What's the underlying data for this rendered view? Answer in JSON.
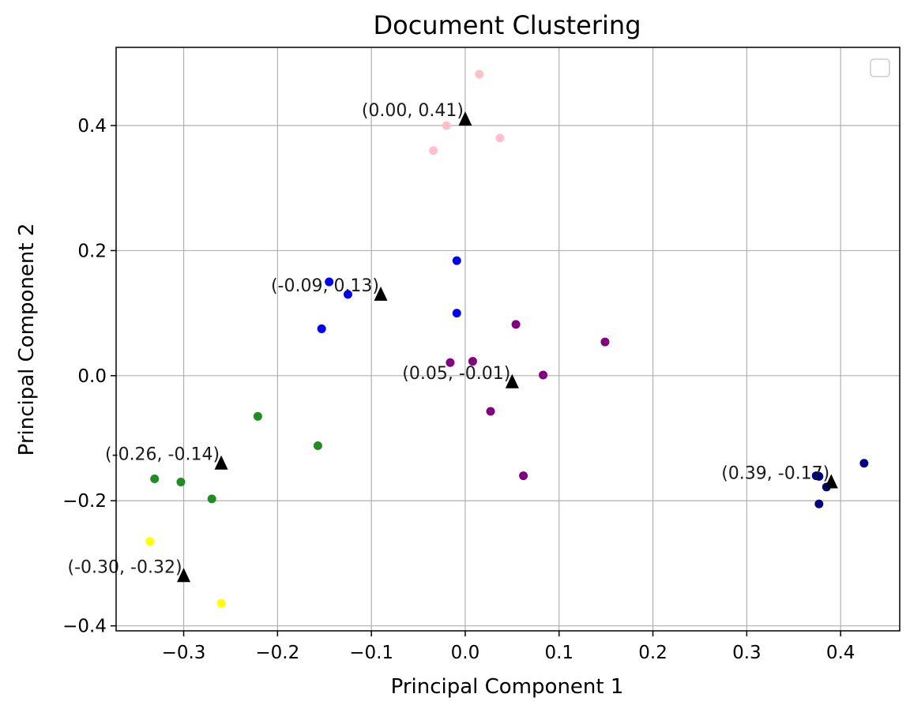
{
  "chart_data": {
    "type": "scatter",
    "title": "Document Clustering",
    "xlabel": "Principal Component 1",
    "ylabel": "Principal Component 2",
    "xlim": [
      -0.372,
      0.463
    ],
    "ylim": [
      -0.408,
      0.525
    ],
    "xticks": [
      -0.3,
      -0.2,
      -0.1,
      0.0,
      0.1,
      0.2,
      0.3,
      0.4
    ],
    "xtick_labels": [
      "−0.3",
      "−0.2",
      "−0.1",
      "0.0",
      "0.1",
      "0.2",
      "0.3",
      "0.4"
    ],
    "yticks": [
      -0.4,
      -0.2,
      0.0,
      0.2,
      0.4
    ],
    "ytick_labels": [
      "−0.4",
      "−0.2",
      "0.0",
      "0.2",
      "0.4"
    ],
    "grid": true,
    "legend": {
      "placement": "top-right",
      "entries": []
    },
    "series": [
      {
        "color": "#ffc0cb",
        "points": [
          [
            0.015,
            0.482
          ],
          [
            -0.02,
            0.4
          ],
          [
            0.037,
            0.38
          ],
          [
            -0.034,
            0.36
          ]
        ]
      },
      {
        "color": "#0000ff",
        "points": [
          [
            -0.009,
            0.184
          ],
          [
            -0.145,
            0.15
          ],
          [
            -0.125,
            0.13
          ],
          [
            -0.009,
            0.1
          ],
          [
            -0.153,
            0.075
          ]
        ]
      },
      {
        "color": "#800080",
        "points": [
          [
            0.054,
            0.082
          ],
          [
            0.149,
            0.054
          ],
          [
            -0.016,
            0.021
          ],
          [
            0.008,
            0.023
          ],
          [
            0.083,
            0.001
          ],
          [
            0.027,
            -0.057
          ],
          [
            0.062,
            -0.16
          ]
        ]
      },
      {
        "color": "#228b22",
        "points": [
          [
            -0.221,
            -0.065
          ],
          [
            -0.157,
            -0.112
          ],
          [
            -0.331,
            -0.165
          ],
          [
            -0.303,
            -0.17
          ],
          [
            -0.27,
            -0.197
          ]
        ]
      },
      {
        "color": "#ffff00",
        "points": [
          [
            -0.336,
            -0.265
          ],
          [
            -0.26,
            -0.364
          ]
        ]
      },
      {
        "color": "#000080",
        "points": [
          [
            0.425,
            -0.14
          ],
          [
            0.374,
            -0.16
          ],
          [
            0.377,
            -0.161
          ],
          [
            0.385,
            -0.178
          ],
          [
            0.377,
            -0.205
          ]
        ]
      }
    ],
    "centroids": {
      "marker": "triangle",
      "color": "#000000",
      "points": [
        {
          "x": 0.0,
          "y": 0.41,
          "label": "(0.00, 0.41)"
        },
        {
          "x": -0.09,
          "y": 0.13,
          "label": "(-0.09, 0.13)"
        },
        {
          "x": 0.05,
          "y": -0.01,
          "label": "(0.05, -0.01)"
        },
        {
          "x": -0.26,
          "y": -0.14,
          "label": "(-0.26, -0.14)"
        },
        {
          "x": 0.39,
          "y": -0.17,
          "label": "(0.39, -0.17)"
        },
        {
          "x": -0.3,
          "y": -0.32,
          "label": "(-0.30, -0.32)"
        }
      ]
    }
  }
}
